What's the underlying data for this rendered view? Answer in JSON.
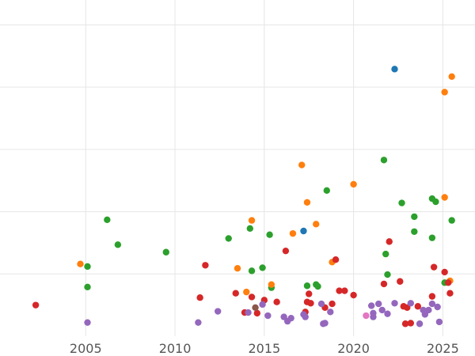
{
  "chart_data": {
    "type": "scatter",
    "title": "",
    "xlabel": "",
    "ylabel": "",
    "xlim": [
      2000.2,
      2026.8
    ],
    "ylim": [
      0,
      5.4
    ],
    "xticks": [
      2005,
      2010,
      2015,
      2020,
      2025
    ],
    "xtick_labels": [
      "2005",
      "2010",
      "2015",
      "2020",
      "2025"
    ],
    "yticks": [
      1,
      2,
      3,
      4,
      5
    ],
    "grid": true,
    "legend": "none",
    "series": [
      {
        "color": "#2ca02c",
        "points": [
          [
            2005.1,
            1.12
          ],
          [
            2005.1,
            0.79
          ],
          [
            2006.2,
            1.87
          ],
          [
            2006.8,
            1.47
          ],
          [
            2009.5,
            1.35
          ],
          [
            2013.0,
            1.57
          ],
          [
            2014.2,
            1.73
          ],
          [
            2014.3,
            1.05
          ],
          [
            2014.9,
            1.1
          ],
          [
            2015.3,
            1.63
          ],
          [
            2015.4,
            0.78
          ],
          [
            2017.4,
            0.81
          ],
          [
            2017.9,
            0.83
          ],
          [
            2018.0,
            0.8
          ],
          [
            2018.5,
            2.34
          ],
          [
            2021.7,
            2.83
          ],
          [
            2021.8,
            1.32
          ],
          [
            2021.9,
            0.99
          ],
          [
            2022.7,
            2.14
          ],
          [
            2023.4,
            1.92
          ],
          [
            2023.4,
            1.68
          ],
          [
            2024.4,
            1.58
          ],
          [
            2024.4,
            2.21
          ],
          [
            2024.6,
            2.16
          ],
          [
            2025.1,
            0.86
          ],
          [
            2025.5,
            1.86
          ]
        ]
      },
      {
        "color": "#ff7f0e",
        "points": [
          [
            2004.7,
            1.16
          ],
          [
            2013.5,
            1.09
          ],
          [
            2014.0,
            0.71
          ],
          [
            2014.3,
            1.86
          ],
          [
            2015.4,
            0.83
          ],
          [
            2016.6,
            1.65
          ],
          [
            2017.1,
            2.75
          ],
          [
            2017.4,
            2.15
          ],
          [
            2017.9,
            1.8
          ],
          [
            2018.8,
            1.19
          ],
          [
            2020.0,
            2.44
          ],
          [
            2025.1,
            2.23
          ],
          [
            2025.1,
            3.92
          ],
          [
            2025.4,
            0.89
          ],
          [
            2025.5,
            4.17
          ]
        ]
      },
      {
        "color": "#d62728",
        "points": [
          [
            2002.2,
            0.5
          ],
          [
            2011.4,
            0.62
          ],
          [
            2011.7,
            1.14
          ],
          [
            2013.4,
            0.69
          ],
          [
            2013.9,
            0.38
          ],
          [
            2014.3,
            0.63
          ],
          [
            2014.6,
            0.37
          ],
          [
            2015.0,
            0.58
          ],
          [
            2015.7,
            0.55
          ],
          [
            2016.2,
            1.37
          ],
          [
            2017.3,
            0.39
          ],
          [
            2017.4,
            0.55
          ],
          [
            2017.5,
            0.68
          ],
          [
            2017.6,
            0.53
          ],
          [
            2018.4,
            0.46
          ],
          [
            2018.8,
            0.52
          ],
          [
            2019.0,
            1.23
          ],
          [
            2019.2,
            0.73
          ],
          [
            2019.5,
            0.73
          ],
          [
            2020.0,
            0.66
          ],
          [
            2021.7,
            0.84
          ],
          [
            2022.0,
            1.52
          ],
          [
            2022.6,
            0.88
          ],
          [
            2022.8,
            0.48
          ],
          [
            2022.9,
            0.2
          ],
          [
            2023.0,
            0.46
          ],
          [
            2023.2,
            0.21
          ],
          [
            2023.6,
            0.48
          ],
          [
            2024.4,
            0.64
          ],
          [
            2024.5,
            1.11
          ],
          [
            2025.1,
            1.03
          ],
          [
            2025.3,
            0.86
          ],
          [
            2025.4,
            0.69
          ]
        ]
      },
      {
        "color": "#9467bd",
        "points": [
          [
            2005.1,
            0.22
          ],
          [
            2011.3,
            0.22
          ],
          [
            2012.4,
            0.4
          ],
          [
            2014.1,
            0.38
          ],
          [
            2014.9,
            0.51
          ],
          [
            2015.2,
            0.33
          ],
          [
            2016.1,
            0.31
          ],
          [
            2016.3,
            0.24
          ],
          [
            2016.5,
            0.29
          ],
          [
            2017.2,
            0.35
          ],
          [
            2017.3,
            0.31
          ],
          [
            2018.2,
            0.52
          ],
          [
            2018.3,
            0.2
          ],
          [
            2018.4,
            0.21
          ],
          [
            2018.7,
            0.39
          ],
          [
            2021.0,
            0.49
          ],
          [
            2021.1,
            0.31
          ],
          [
            2021.1,
            0.37
          ],
          [
            2021.4,
            0.52
          ],
          [
            2021.6,
            0.42
          ],
          [
            2021.9,
            0.36
          ],
          [
            2022.3,
            0.53
          ],
          [
            2023.2,
            0.53
          ],
          [
            2023.7,
            0.2
          ],
          [
            2023.9,
            0.42
          ],
          [
            2024.0,
            0.35
          ],
          [
            2024.2,
            0.42
          ],
          [
            2024.4,
            0.52
          ],
          [
            2024.7,
            0.47
          ],
          [
            2024.8,
            0.23
          ]
        ]
      },
      {
        "color": "#1f77b4",
        "points": [
          [
            2017.2,
            1.69
          ],
          [
            2022.3,
            4.29
          ]
        ]
      },
      {
        "color": "#e377c2",
        "points": [
          [
            2020.7,
            0.33
          ]
        ]
      },
      {
        "color": "#8c564b",
        "points": [
          [
            2014.5,
            0.46
          ]
        ]
      }
    ]
  }
}
